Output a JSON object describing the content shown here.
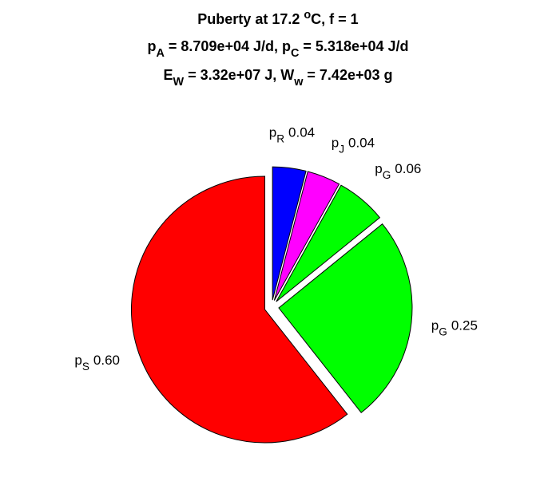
{
  "chart_data": {
    "type": "pie",
    "title": [
      [
        "Puberty at 17.2 ",
        {
          "sup": "o"
        },
        "C, f = 1"
      ],
      [
        "p",
        {
          "sub": "A"
        },
        " = 8.709e+04 J/d,  p",
        {
          "sub": "C"
        },
        " = 5.318e+04 J/d"
      ],
      [
        "E",
        {
          "sub": "W"
        },
        " = 3.32e+07 J, W",
        {
          "sub": "w"
        },
        " = 7.42e+03 g"
      ]
    ],
    "categories": [
      {
        "base": "p",
        "sub": "R"
      },
      {
        "base": "p",
        "sub": "J"
      },
      {
        "base": "p",
        "sub": "G"
      },
      {
        "base": "p",
        "sub": "G"
      },
      {
        "base": "p",
        "sub": "S"
      }
    ],
    "values": [
      0.04,
      0.04,
      0.06,
      0.25,
      0.6
    ],
    "value_labels": [
      "0.04",
      "0.04",
      "0.06",
      "0.25",
      "0.60"
    ],
    "colors": [
      "#0000ff",
      "#ff00ff",
      "#00ff00",
      "#00ff00",
      "#ff0000"
    ],
    "explode": [
      1,
      1,
      1,
      1,
      1
    ]
  }
}
